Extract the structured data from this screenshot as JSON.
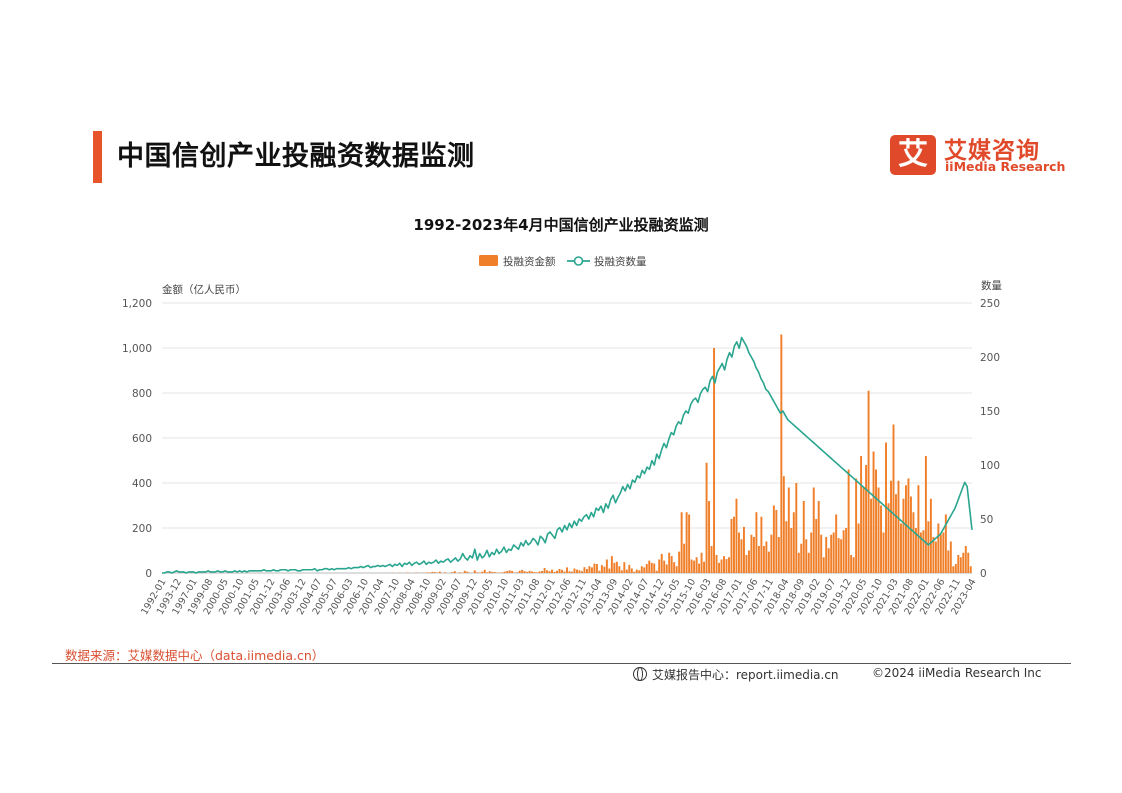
{
  "header": {
    "title": "中国信创产业投融资数据监测",
    "logo": {
      "mark": "艾",
      "cn": "艾媒咨询",
      "en": "iiMedia Research"
    }
  },
  "colors": {
    "accent": "#e8542a",
    "bar": "#f07f2a",
    "line": "#2aa58f",
    "brand": "#e04a2a"
  },
  "footer": {
    "source": "数据来源：艾媒数据中心（data.iimedia.cn）",
    "report": "艾媒报告中心：report.iimedia.cn",
    "copyright": "©2024  iiMedia Research  Inc"
  },
  "chart_data": {
    "type": "bar",
    "title": "1992-2023年4月中国信创产业投融资监测",
    "legend_position": "top-center",
    "grid": true,
    "ylabel": "金额（亿人民币）",
    "y2label": "数量",
    "ylim": [
      0,
      1200
    ],
    "y2lim": [
      0,
      250
    ],
    "yticks": [
      "0",
      "200",
      "400",
      "600",
      "800",
      "1,000",
      "1,200"
    ],
    "y2ticks": [
      "0",
      "50",
      "100",
      "150",
      "200",
      "250"
    ],
    "x_ticks": [
      "1992-01",
      "1993-12",
      "1997-01",
      "1999-08",
      "2000-05",
      "2000-10",
      "2001-05",
      "2001-12",
      "2003-06",
      "2003-12",
      "2004-07",
      "2005-07",
      "2006-03",
      "2006-10",
      "2007-04",
      "2007-10",
      "2008-04",
      "2008-10",
      "2009-02",
      "2009-07",
      "2009-12",
      "2010-05",
      "2010-10",
      "2011-03",
      "2011-08",
      "2012-01",
      "2012-06",
      "2012-11",
      "2013-04",
      "2013-09",
      "2014-02",
      "2014-07",
      "2014-12",
      "2015-05",
      "2015-10",
      "2016-03",
      "2016-08",
      "2017-01",
      "2017-06",
      "2017-11",
      "2018-04",
      "2018-09",
      "2019-02",
      "2019-07",
      "2019-12",
      "2020-05",
      "2020-10",
      "2021-03",
      "2021-08",
      "2022-01",
      "2022-06",
      "2022-11",
      "2023-04"
    ],
    "series": [
      {
        "name": "投融资金额",
        "type": "bar",
        "axis": "left",
        "values": [
          0,
          0,
          0,
          0,
          0,
          0,
          0,
          0,
          0,
          0,
          0,
          0,
          0,
          0,
          0,
          0,
          0,
          0,
          0,
          0,
          0,
          0,
          0,
          0,
          0,
          0,
          0,
          0,
          0,
          0,
          0,
          0,
          0,
          0,
          0,
          0,
          0,
          0,
          0,
          0,
          0,
          0,
          0,
          0,
          0,
          0,
          0,
          0,
          0,
          0,
          0,
          0,
          0,
          0,
          0,
          0,
          0,
          0,
          0,
          0,
          0,
          0,
          0,
          0,
          0,
          0,
          0,
          0,
          0,
          0,
          0,
          0,
          0,
          0,
          0,
          0,
          0,
          0,
          0,
          0,
          0,
          0,
          0,
          0,
          0,
          0,
          0,
          0,
          0,
          0,
          0,
          0,
          1,
          0,
          0,
          1,
          0,
          0,
          2,
          0,
          0,
          1,
          2,
          0,
          1,
          0,
          3,
          2,
          5,
          4,
          2,
          6,
          0,
          3,
          0,
          0,
          4,
          8,
          0,
          3,
          2,
          10,
          6,
          2,
          0,
          12,
          3,
          2,
          6,
          14,
          3,
          8,
          5,
          4,
          2,
          1,
          3,
          6,
          9,
          12,
          9,
          2,
          3,
          10,
          14,
          8,
          5,
          10,
          7,
          4,
          3,
          7,
          9,
          22,
          12,
          8,
          15,
          5,
          10,
          18,
          14,
          7,
          25,
          8,
          6,
          20,
          15,
          12,
          8,
          26,
          18,
          30,
          25,
          42,
          40,
          10,
          35,
          28,
          60,
          20,
          75,
          45,
          50,
          30,
          12,
          48,
          15,
          36,
          20,
          6,
          15,
          12,
          30,
          25,
          40,
          55,
          45,
          42,
          10,
          60,
          85,
          55,
          38,
          90,
          75,
          48,
          30,
          95,
          270,
          130,
          270,
          260,
          60,
          55,
          70,
          42,
          90,
          50,
          490,
          320,
          120,
          1000,
          80,
          45,
          60,
          75,
          62,
          70,
          240,
          250,
          330,
          180,
          150,
          205,
          80,
          100,
          170,
          160,
          270,
          120,
          250,
          120,
          140,
          95,
          170,
          300,
          280,
          160,
          1060,
          430,
          230,
          380,
          200,
          270,
          400,
          90,
          130,
          320,
          150,
          90,
          180,
          380,
          240,
          320,
          170,
          70,
          160,
          110,
          170,
          180,
          260,
          155,
          150,
          190,
          200,
          460,
          80,
          70,
          420,
          220,
          520,
          380,
          480,
          810,
          330,
          540,
          460,
          380,
          300,
          180,
          580,
          310,
          410,
          660,
          350,
          410,
          220,
          330,
          390,
          420,
          340,
          270,
          200,
          390,
          180,
          190,
          520,
          230,
          330,
          160,
          140,
          220,
          170,
          180,
          260,
          100,
          140,
          30,
          40,
          80,
          70,
          90,
          120,
          90,
          30
        ]
      },
      {
        "name": "投融资数量",
        "type": "line",
        "axis": "right",
        "values": [
          0,
          0,
          1,
          1,
          0,
          1,
          2,
          1,
          1,
          1,
          0,
          1,
          1,
          1,
          0,
          1,
          1,
          1,
          1,
          2,
          1,
          1,
          1,
          2,
          1,
          1,
          2,
          1,
          1,
          1,
          2,
          1,
          2,
          1,
          2,
          1,
          2,
          2,
          2,
          2,
          2,
          2,
          3,
          2,
          2,
          2,
          3,
          2,
          2,
          3,
          3,
          3,
          2,
          3,
          3,
          3,
          2,
          2,
          3,
          3,
          3,
          3,
          3,
          4,
          2,
          3,
          3,
          4,
          4,
          3,
          4,
          3,
          4,
          4,
          4,
          4,
          4,
          5,
          4,
          5,
          5,
          5,
          6,
          5,
          6,
          7,
          5,
          6,
          6,
          7,
          6,
          7,
          6,
          7,
          8,
          6,
          8,
          7,
          9,
          6,
          9,
          8,
          10,
          7,
          9,
          10,
          8,
          9,
          11,
          8,
          10,
          9,
          10,
          12,
          9,
          11,
          10,
          12,
          13,
          10,
          12,
          14,
          11,
          13,
          18,
          14,
          12,
          16,
          14,
          22,
          12,
          18,
          14,
          16,
          21,
          15,
          19,
          17,
          22,
          18,
          20,
          24,
          19,
          22,
          21,
          26,
          24,
          22,
          28,
          25,
          30,
          26,
          28,
          32,
          30,
          26,
          34,
          32,
          28,
          36,
          38,
          35,
          32,
          40,
          42,
          38,
          44,
          40,
          46,
          42,
          48,
          44,
          50,
          48,
          52,
          54,
          50,
          56,
          52,
          60,
          58,
          62,
          56,
          64,
          60,
          68,
          72,
          65,
          70,
          74,
          80,
          76,
          82,
          78,
          86,
          84,
          90,
          88,
          95,
          92,
          98,
          96,
          104,
          100,
          110,
          106,
          114,
          120,
          116,
          124,
          130,
          128,
          136,
          140,
          138,
          146,
          150,
          148,
          156,
          160,
          162,
          158,
          166,
          170,
          172,
          168,
          178,
          182,
          176,
          186,
          190,
          194,
          188,
          198,
          204,
          200,
          210,
          214,
          208,
          218,
          214,
          210,
          204,
          200,
          196,
          190,
          186,
          180,
          176,
          170,
          168,
          164,
          160,
          156,
          152,
          148,
          150,
          146,
          142,
          140,
          138,
          136,
          134,
          132,
          130,
          128,
          126,
          124,
          122,
          120,
          118,
          116,
          114,
          112,
          110,
          108,
          106,
          104,
          102,
          100,
          98,
          96,
          94,
          92,
          90,
          88,
          86,
          84,
          82,
          80,
          78,
          76,
          74,
          72,
          70,
          68,
          66,
          64,
          62,
          60,
          58,
          56,
          54,
          52,
          50,
          48,
          46,
          44,
          42,
          40,
          38,
          36,
          34,
          32,
          30,
          28,
          26,
          28,
          30,
          32,
          34,
          36,
          40,
          44,
          48,
          52,
          56,
          60,
          66,
          72,
          78,
          84,
          80,
          60,
          40
        ]
      }
    ]
  }
}
